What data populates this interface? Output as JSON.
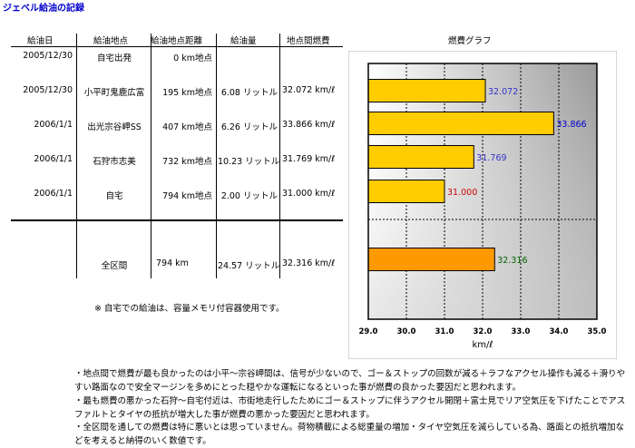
{
  "page_title": "ジェベル給油の記録",
  "table": {
    "headers": [
      "給油日",
      "給油地点",
      "給油地点距離",
      "給油量",
      "地点間燃費"
    ],
    "rows": [
      {
        "date": "2005/12/30",
        "place": "自宅出発",
        "distance": "0 km地点",
        "fuel": "",
        "economy": ""
      },
      {
        "date": "2005/12/30",
        "place": "小平町鬼鹿広富",
        "distance": "195 km地点",
        "fuel": "6.08 リットル",
        "economy": "32.072  km/ℓ"
      },
      {
        "date": "2006/1/1",
        "place": "出光宗谷岬SS",
        "distance": "407 km地点",
        "fuel": "6.26 リットル",
        "economy": "33.866  km/ℓ"
      },
      {
        "date": "2006/1/1",
        "place": "石狩市志美",
        "distance": "732 km地点",
        "fuel": "10.23 リットル",
        "economy": "31.769  km/ℓ"
      },
      {
        "date": "2006/1/1",
        "place": "自宅",
        "distance": "794 km地点",
        "fuel": "2.00  リットル",
        "economy": "31.000  km/ℓ"
      }
    ],
    "total": {
      "label": "全区間",
      "distance": "794 km",
      "fuel": "24.57 リットル",
      "economy": "32.316  km/ℓ"
    },
    "note": "※ 自宅での給油は、容量メモリ付容器使用です。"
  },
  "chart_data": {
    "type": "bar",
    "orientation": "horizontal",
    "title": "燃費グラフ",
    "xlabel": "km/ℓ",
    "xlim": [
      29.0,
      35.0
    ],
    "xticks": [
      "29.0",
      "30.0",
      "31.0",
      "32.0",
      "33.0",
      "34.0",
      "35.0"
    ],
    "grid": true,
    "bars": [
      {
        "value": 32.072,
        "label": "32.072",
        "color": "#ffcc00",
        "label_color": "#3333cc"
      },
      {
        "value": 33.866,
        "label": "33.866",
        "color": "#ffcc00",
        "label_color": "#0000cc"
      },
      {
        "value": 31.769,
        "label": "31.769",
        "color": "#ffcc00",
        "label_color": "#3333cc"
      },
      {
        "value": 31.0,
        "label": "31.000",
        "color": "#ffcc00",
        "label_color": "#cc0000"
      },
      {
        "value": 32.316,
        "label": "32.316",
        "color": "#ff9900",
        "label_color": "#006600"
      }
    ]
  },
  "comments": [
    "・地点間で燃費が最も良かったのは小平～宗谷岬間は、信号が少ないので、ゴー＆ストップの回数が減る＋ラフなアクセル操作も減る＋滑りやすい路面なので安全マージンを多めにとった穏やかな運転になるといった事が燃費の良かった要因だと思われます。",
    "・最も燃費の悪かった石狩～自宅付近は、市街地走行したためにゴー＆ストップに伴うアクセル開閉＋富士見でリア空気圧を下げたことでアスファルトとタイヤの抵抗が増大した事が燃費の悪かった要因だと思われます。",
    "・全区間を通しての燃費は特に悪いとは思っていません。荷物積載による総重量の増加・タイヤ空気圧を減らしている為、路面との抵抗増加などを考えると納得のいく数値です。"
  ]
}
